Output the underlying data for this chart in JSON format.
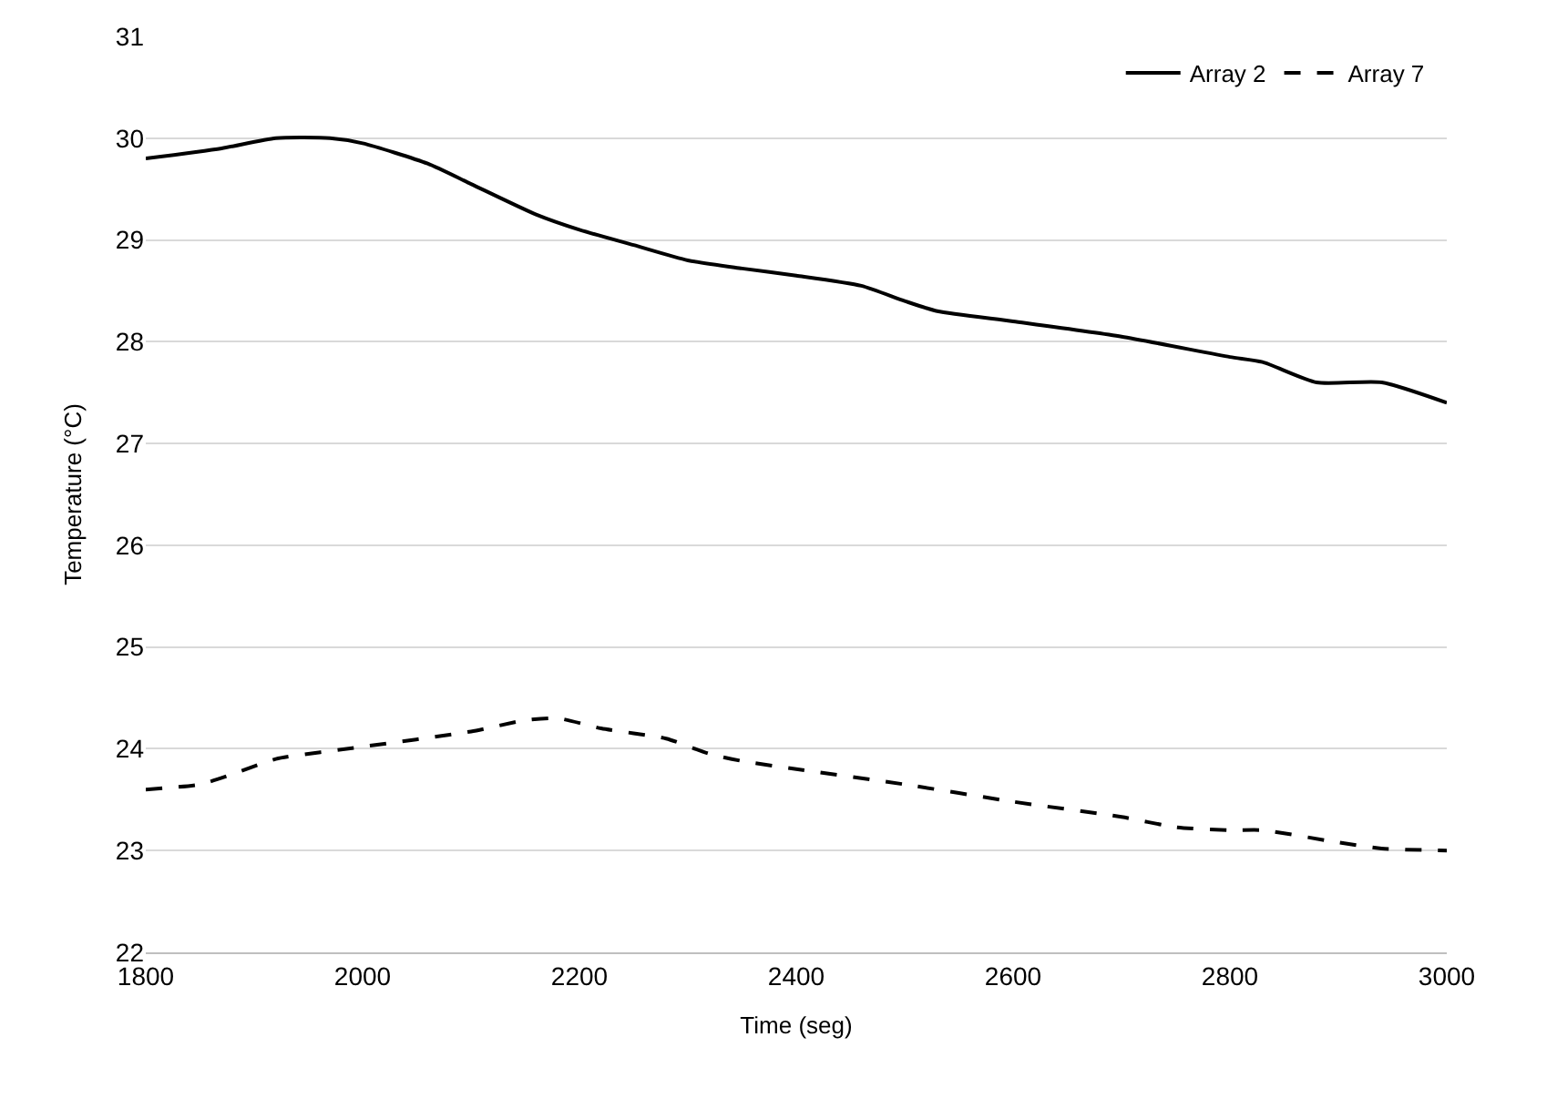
{
  "chart_data": {
    "type": "line",
    "xlabel": "Time (seg)",
    "ylabel": "Temperature (°C)",
    "xlim": [
      1800,
      3000
    ],
    "xticks": [
      1800,
      2000,
      2200,
      2400,
      2600,
      2800,
      3000
    ],
    "ylim": [
      22,
      31
    ],
    "yticks": [
      22,
      23,
      24,
      25,
      26,
      27,
      28,
      29,
      30,
      31
    ],
    "grid": "y",
    "legend": "top right",
    "marker": "none",
    "series": [
      {
        "name": "Array 2",
        "color": "#000000",
        "line_style": "solid",
        "x": [
          1800,
          1870,
          1920,
          1970,
          2000,
          2060,
          2100,
          2160,
          2200,
          2250,
          2300,
          2350,
          2400,
          2460,
          2500,
          2530,
          2600,
          2700,
          2800,
          2830,
          2880,
          2940,
          3000
        ],
        "values": [
          29.8,
          29.9,
          30.0,
          30.0,
          29.95,
          29.75,
          29.55,
          29.25,
          29.1,
          28.95,
          28.8,
          28.72,
          28.65,
          28.55,
          28.4,
          28.3,
          28.2,
          28.05,
          27.85,
          27.8,
          27.6,
          27.6,
          27.4
        ]
      },
      {
        "name": "Array 7",
        "color": "#000000",
        "line_style": "dashed",
        "x": [
          1800,
          1850,
          1880,
          1920,
          2000,
          2100,
          2150,
          2180,
          2220,
          2280,
          2320,
          2350,
          2400,
          2500,
          2600,
          2700,
          2750,
          2800,
          2830,
          2900,
          2940,
          3000
        ],
        "values": [
          23.6,
          23.65,
          23.75,
          23.9,
          24.02,
          24.17,
          24.28,
          24.3,
          24.2,
          24.1,
          23.95,
          23.88,
          23.8,
          23.65,
          23.48,
          23.33,
          23.23,
          23.2,
          23.2,
          23.08,
          23.02,
          23.0
        ]
      }
    ]
  }
}
